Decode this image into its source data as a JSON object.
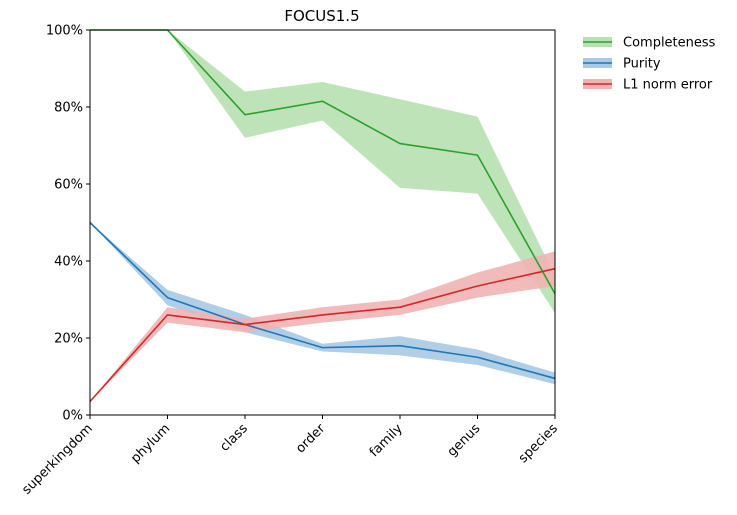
{
  "chart_data": {
    "type": "line",
    "title": "FOCUS1.5",
    "xlabel": "",
    "ylabel": "",
    "categories": [
      "superkingdom",
      "phylum",
      "class",
      "order",
      "family",
      "genus",
      "species"
    ],
    "ylim": [
      0,
      100
    ],
    "yticks": [
      "0%",
      "20%",
      "40%",
      "60%",
      "80%",
      "100%"
    ],
    "grid": false,
    "legend": "outside-top-right",
    "series": [
      {
        "name": "Completeness",
        "color": "#2ca02c",
        "band_color": "#b8e0b0",
        "values": [
          100,
          100,
          78,
          81.5,
          70.5,
          67.5,
          31.5
        ],
        "lower": [
          100,
          100,
          72,
          76.5,
          59,
          57.5,
          26.5
        ],
        "upper": [
          100,
          100,
          84,
          86.5,
          82,
          77.5,
          36
        ]
      },
      {
        "name": "Purity",
        "color": "#1f77b4",
        "band_color": "#a9c9e4",
        "values": [
          50,
          30.5,
          23.5,
          17.5,
          18,
          15,
          9.5
        ],
        "lower": [
          50,
          28.5,
          21.5,
          16.5,
          15.5,
          13,
          8
        ],
        "upper": [
          50,
          32.5,
          26,
          18.5,
          20.5,
          17,
          11
        ]
      },
      {
        "name": "L1 norm error",
        "color": "#d62728",
        "band_color": "#f0b3b4",
        "values": [
          3.5,
          26,
          23.5,
          26,
          28,
          33.5,
          38
        ],
        "lower": [
          3.5,
          24,
          21.5,
          24,
          26,
          30.5,
          33.5
        ],
        "upper": [
          3.5,
          28,
          25,
          28,
          30,
          37,
          42.5
        ]
      }
    ]
  }
}
